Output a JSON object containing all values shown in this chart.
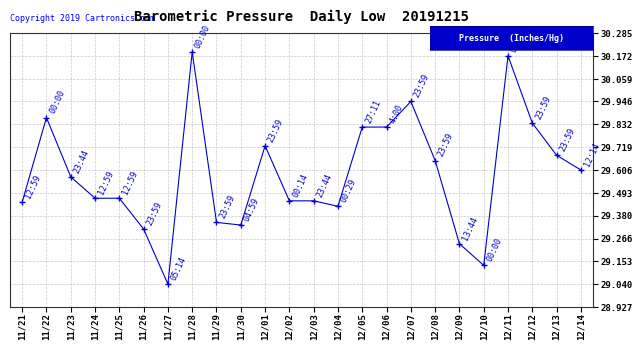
{
  "title": "Barometric Pressure  Daily Low  20191215",
  "copyright": "Copyright 2019 Cartronics.com",
  "legend_label": "Pressure  (Inches/Hg)",
  "x_labels": [
    "11/21",
    "11/22",
    "11/23",
    "11/24",
    "11/25",
    "11/26",
    "11/27",
    "11/28",
    "11/29",
    "11/30",
    "12/01",
    "12/02",
    "12/03",
    "12/04",
    "12/05",
    "12/06",
    "12/07",
    "12/08",
    "12/09",
    "12/10",
    "12/11",
    "12/12",
    "12/13",
    "12/14"
  ],
  "y_values": [
    29.446,
    29.866,
    29.572,
    29.466,
    29.466,
    29.313,
    29.04,
    30.192,
    29.346,
    29.333,
    29.726,
    29.453,
    29.453,
    29.426,
    29.819,
    29.819,
    29.946,
    29.653,
    29.24,
    29.133,
    30.172,
    29.839,
    29.679,
    29.606
  ],
  "point_labels": [
    "12:59",
    "00:00",
    "23:44",
    "12:59",
    "12:59",
    "23:59",
    "05:14",
    "00:00",
    "23:59",
    "04:59",
    "23:59",
    "00:14",
    "23:44",
    "00:29",
    "27:11",
    "4:00",
    "23:59",
    "23:59",
    "13:44",
    "00:00",
    "00:1",
    "23:59",
    "23:59",
    "12:14"
  ],
  "line_color": "#0000cc",
  "marker_color": "#0000cc",
  "background_color": "#ffffff",
  "grid_color": "#bbbbbb",
  "ylim_min": 28.927,
  "ylim_max": 30.285,
  "yticks": [
    28.927,
    29.04,
    29.153,
    29.266,
    29.38,
    29.493,
    29.606,
    29.719,
    29.832,
    29.946,
    30.059,
    30.172,
    30.285
  ],
  "title_fontsize": 10,
  "label_fontsize": 6.5,
  "point_label_fontsize": 6,
  "copyright_fontsize": 6,
  "legend_box_color": "#0000cc",
  "legend_text_color": "#ffffff"
}
